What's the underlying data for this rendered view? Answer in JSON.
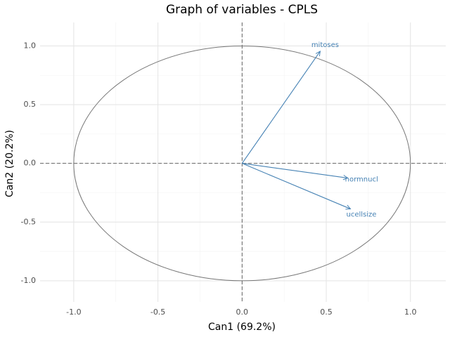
{
  "chart_data": {
    "type": "vector",
    "title": "Graph of variables - CPLS",
    "x_label": "Can1 (69.2%)",
    "y_label": "Can2 (20.2%)",
    "labels": [
      "mitoses",
      "normnucl",
      "ucellsize"
    ],
    "x": [
      0.464,
      0.628,
      0.644
    ],
    "y": [
      0.955,
      -0.125,
      -0.388
    ],
    "color": "#4682b4",
    "circle_radius": 1,
    "xlim": [
      -1.2,
      1.21
    ],
    "ylim": [
      -1.18,
      1.2
    ],
    "xticks": [
      {
        "value": -1,
        "label": "-1.0"
      },
      -0.5,
      {
        "value": 0,
        "label": "0.0"
      },
      0.5,
      {
        "value": 1,
        "label": "1.0"
      }
    ],
    "yticks": [
      {
        "value": -1,
        "label": "-1.0"
      },
      -0.5,
      {
        "value": 0,
        "label": "0.0"
      },
      0.5,
      {
        "value": 1,
        "label": "1.0"
      }
    ],
    "grid": true
  }
}
